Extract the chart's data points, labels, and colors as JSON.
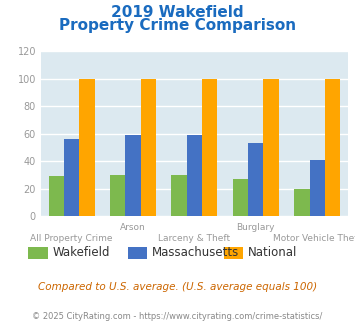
{
  "title_line1": "2019 Wakefield",
  "title_line2": "Property Crime Comparison",
  "title_color": "#1a6bbf",
  "categories": [
    "All Property Crime",
    "Arson",
    "Larceny & Theft",
    "Burglary",
    "Motor Vehicle Theft"
  ],
  "series": {
    "Wakefield": [
      29,
      30,
      30,
      27,
      20
    ],
    "Massachusetts": [
      56,
      59,
      59,
      53,
      41
    ],
    "National": [
      100,
      100,
      100,
      100,
      100
    ]
  },
  "colors": {
    "Wakefield": "#7db94e",
    "Massachusetts": "#4472c4",
    "National": "#ffa500"
  },
  "ylim": [
    0,
    120
  ],
  "yticks": [
    0,
    20,
    40,
    60,
    80,
    100,
    120
  ],
  "bar_width": 0.25,
  "plot_bg_color": "#dce9f0",
  "fig_bg_color": "#ffffff",
  "grid_color": "#ffffff",
  "legend_labels": [
    "Wakefield",
    "Massachusetts",
    "National"
  ],
  "top_labels": {
    "1": "Arson",
    "3": "Burglary"
  },
  "bottom_labels": {
    "0": "All Property Crime",
    "2": "Larceny & Theft",
    "4": "Motor Vehicle Theft"
  },
  "footnote1": "Compared to U.S. average. (U.S. average equals 100)",
  "footnote2": "© 2025 CityRating.com - https://www.cityrating.com/crime-statistics/",
  "footnote1_color": "#cc6600",
  "footnote2_color": "#888888",
  "label_color": "#999999"
}
